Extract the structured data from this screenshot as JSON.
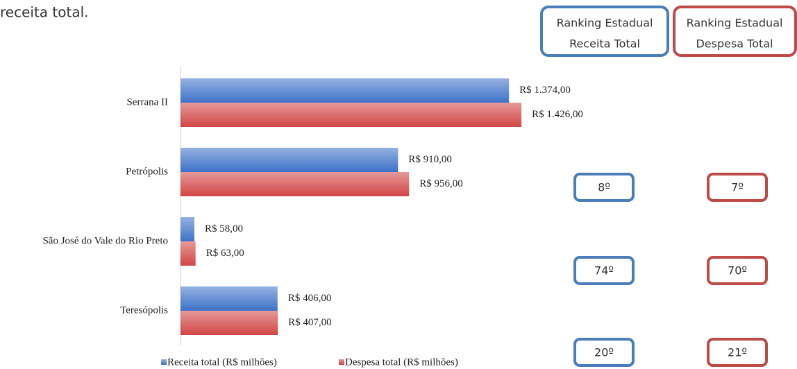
{
  "caption": "receita total.",
  "ranking_headers": [
    [
      "Ranking Estadual",
      "Receita Total"
    ],
    [
      "Ranking Estadual",
      "Despesa Total"
    ]
  ],
  "rankings": [
    [
      "8º",
      "7º"
    ],
    [
      "74º",
      "70º"
    ],
    [
      "20º",
      "21º"
    ]
  ],
  "chart_data": {
    "type": "hbar",
    "categories": [
      "Serrana II",
      "Petrópolis",
      "São José do Vale do Rio Preto",
      "Teresópolis"
    ],
    "series": [
      {
        "name": "Receita total (R$ milhões)",
        "color": "#3e72c8",
        "values": [
          1374,
          910,
          58,
          406
        ],
        "value_labels": [
          "R$ 1.374,00",
          "R$ 910,00",
          "R$ 58,00",
          "R$ 406,00"
        ]
      },
      {
        "name": "Despesa total (R$ milhões)",
        "color": "#d24545",
        "values": [
          1426,
          956,
          63,
          407
        ],
        "value_labels": [
          "R$ 1.426,00",
          "R$ 956,00",
          "R$ 63,00",
          "R$ 407,00"
        ]
      }
    ],
    "xlim": [
      0,
      1600
    ],
    "legend": "bottom"
  }
}
